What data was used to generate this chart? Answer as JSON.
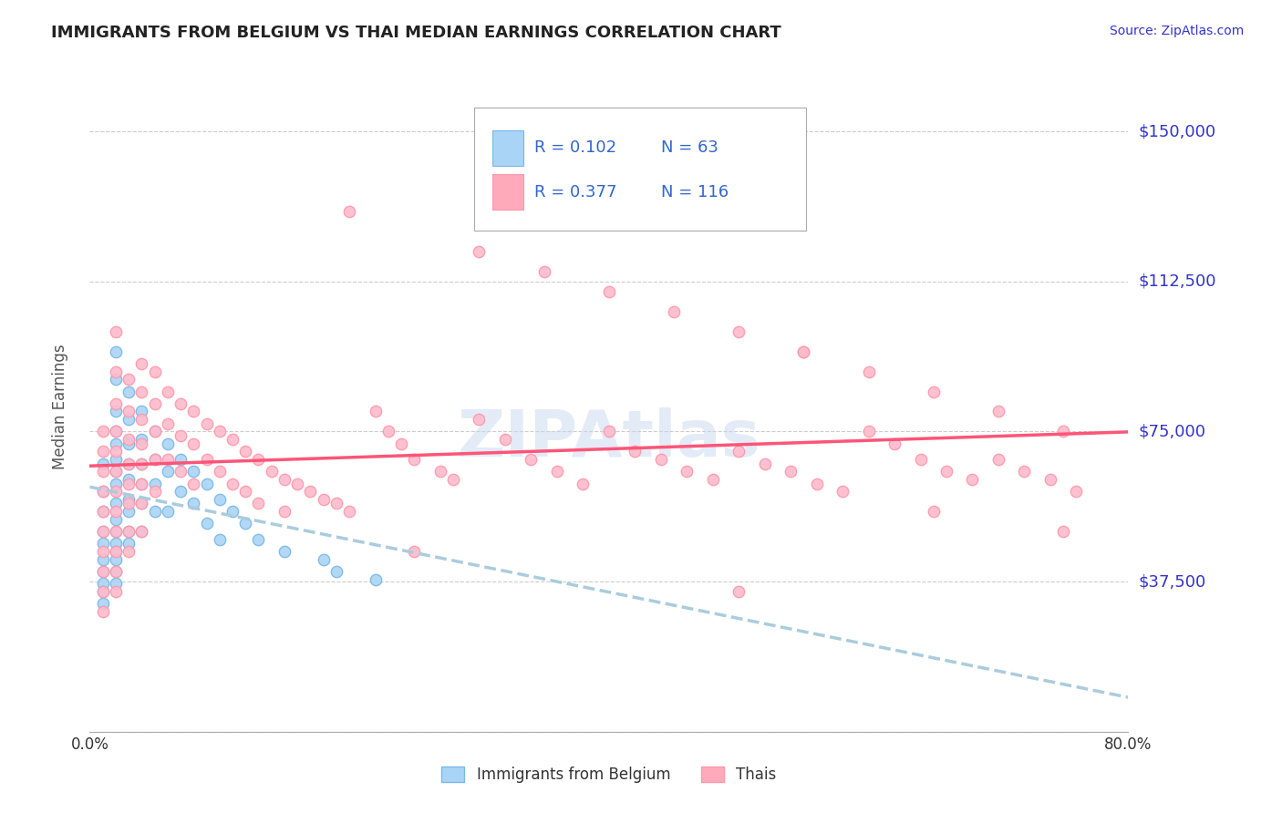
{
  "title": "IMMIGRANTS FROM BELGIUM VS THAI MEDIAN EARNINGS CORRELATION CHART",
  "source_text": "Source: ZipAtlas.com",
  "xlabel": "",
  "ylabel": "Median Earnings",
  "xlim": [
    0.0,
    0.8
  ],
  "ylim": [
    0,
    162500
  ],
  "yticks": [
    0,
    37500,
    75000,
    112500,
    150000
  ],
  "ytick_labels": [
    "",
    "$37,500",
    "$75,000",
    "$112,500",
    "$150,000"
  ],
  "xticks": [
    0.0,
    0.1,
    0.2,
    0.3,
    0.4,
    0.5,
    0.6,
    0.7,
    0.8
  ],
  "xtick_labels": [
    "0.0%",
    "",
    "",
    "",
    "",
    "",
    "",
    "",
    "80.0%"
  ],
  "title_color": "#222222",
  "title_fontsize": 13,
  "axis_label_color": "#555555",
  "ytick_color": "#3333cc",
  "xtick_color": "#333333",
  "background_color": "#ffffff",
  "grid_color": "#cccccc",
  "legend_R1": "0.102",
  "legend_N1": "63",
  "legend_R2": "0.377",
  "legend_N2": "116",
  "legend_color1": "#aad4f5",
  "legend_color2": "#ffaabb",
  "legend_text_color": "#3366cc",
  "series1_color": "#aad4f5",
  "series1_edge": "#7ab8e8",
  "series2_color": "#ffbbcc",
  "series2_edge": "#ff99aa",
  "trendline1_color": "#aaccdd",
  "trendline2_color": "#ff5577",
  "watermark_color": "#c8d8f0",
  "belgium_x": [
    0.01,
    0.01,
    0.01,
    0.01,
    0.01,
    0.01,
    0.01,
    0.01,
    0.01,
    0.01,
    0.02,
    0.02,
    0.02,
    0.02,
    0.02,
    0.02,
    0.02,
    0.02,
    0.02,
    0.02,
    0.02,
    0.02,
    0.02,
    0.02,
    0.02,
    0.02,
    0.03,
    0.03,
    0.03,
    0.03,
    0.03,
    0.03,
    0.03,
    0.03,
    0.03,
    0.04,
    0.04,
    0.04,
    0.04,
    0.04,
    0.04,
    0.05,
    0.05,
    0.05,
    0.05,
    0.06,
    0.06,
    0.06,
    0.07,
    0.07,
    0.08,
    0.08,
    0.09,
    0.09,
    0.1,
    0.1,
    0.11,
    0.12,
    0.13,
    0.15,
    0.18,
    0.19,
    0.22
  ],
  "belgium_y": [
    67000,
    60000,
    55000,
    50000,
    47000,
    43000,
    40000,
    37000,
    35000,
    32000,
    95000,
    88000,
    80000,
    75000,
    72000,
    68000,
    65000,
    62000,
    57000,
    53000,
    50000,
    47000,
    45000,
    43000,
    40000,
    37000,
    85000,
    78000,
    72000,
    67000,
    63000,
    58000,
    55000,
    50000,
    47000,
    80000,
    73000,
    67000,
    62000,
    57000,
    50000,
    75000,
    68000,
    62000,
    55000,
    72000,
    65000,
    55000,
    68000,
    60000,
    65000,
    57000,
    62000,
    52000,
    58000,
    48000,
    55000,
    52000,
    48000,
    45000,
    43000,
    40000,
    38000
  ],
  "thai_x": [
    0.01,
    0.01,
    0.01,
    0.01,
    0.01,
    0.01,
    0.01,
    0.01,
    0.01,
    0.01,
    0.02,
    0.02,
    0.02,
    0.02,
    0.02,
    0.02,
    0.02,
    0.02,
    0.02,
    0.02,
    0.02,
    0.02,
    0.03,
    0.03,
    0.03,
    0.03,
    0.03,
    0.03,
    0.03,
    0.03,
    0.04,
    0.04,
    0.04,
    0.04,
    0.04,
    0.04,
    0.04,
    0.04,
    0.05,
    0.05,
    0.05,
    0.05,
    0.05,
    0.06,
    0.06,
    0.06,
    0.07,
    0.07,
    0.07,
    0.08,
    0.08,
    0.08,
    0.09,
    0.09,
    0.1,
    0.1,
    0.11,
    0.11,
    0.12,
    0.12,
    0.13,
    0.13,
    0.14,
    0.15,
    0.15,
    0.16,
    0.17,
    0.18,
    0.19,
    0.2,
    0.22,
    0.23,
    0.24,
    0.25,
    0.27,
    0.28,
    0.3,
    0.32,
    0.34,
    0.36,
    0.38,
    0.4,
    0.42,
    0.44,
    0.46,
    0.48,
    0.5,
    0.52,
    0.54,
    0.56,
    0.58,
    0.6,
    0.62,
    0.64,
    0.66,
    0.68,
    0.7,
    0.72,
    0.74,
    0.76,
    0.3,
    0.35,
    0.4,
    0.45,
    0.5,
    0.55,
    0.6,
    0.65,
    0.7,
    0.75,
    0.25,
    0.5,
    0.65,
    0.75,
    0.2,
    0.55
  ],
  "thai_y": [
    75000,
    70000,
    65000,
    60000,
    55000,
    50000,
    45000,
    40000,
    35000,
    30000,
    100000,
    90000,
    82000,
    75000,
    70000,
    65000,
    60000,
    55000,
    50000,
    45000,
    40000,
    35000,
    88000,
    80000,
    73000,
    67000,
    62000,
    57000,
    50000,
    45000,
    92000,
    85000,
    78000,
    72000,
    67000,
    62000,
    57000,
    50000,
    90000,
    82000,
    75000,
    68000,
    60000,
    85000,
    77000,
    68000,
    82000,
    74000,
    65000,
    80000,
    72000,
    62000,
    77000,
    68000,
    75000,
    65000,
    73000,
    62000,
    70000,
    60000,
    68000,
    57000,
    65000,
    63000,
    55000,
    62000,
    60000,
    58000,
    57000,
    55000,
    80000,
    75000,
    72000,
    68000,
    65000,
    63000,
    78000,
    73000,
    68000,
    65000,
    62000,
    75000,
    70000,
    68000,
    65000,
    63000,
    70000,
    67000,
    65000,
    62000,
    60000,
    75000,
    72000,
    68000,
    65000,
    63000,
    68000,
    65000,
    63000,
    60000,
    120000,
    115000,
    110000,
    105000,
    100000,
    95000,
    90000,
    85000,
    80000,
    75000,
    45000,
    35000,
    55000,
    50000,
    130000,
    95000
  ]
}
